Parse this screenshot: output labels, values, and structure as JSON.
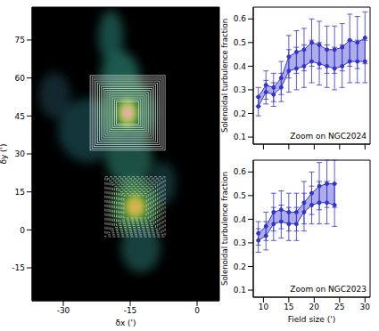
{
  "chart_data": [
    {
      "type": "image",
      "xlabel": "δx (')",
      "ylabel": "δy (')",
      "xlim": [
        -37,
        5
      ],
      "xticks": [
        -30,
        -15,
        0
      ],
      "ylim": [
        -28,
        88
      ],
      "yticks": [
        -15,
        0,
        15,
        30,
        45,
        60,
        75
      ]
    },
    {
      "type": "band",
      "ylabel": "Solenoidal turbulence fraction",
      "annotation": "Zoom on NGC2024",
      "x": [
        9,
        10.5,
        12,
        13.5,
        15,
        16.5,
        18,
        19.5,
        21,
        22.5,
        24,
        25.5,
        27,
        28.5,
        30
      ],
      "series": [
        {
          "color": "#3333cc",
          "marker": "circle",
          "values": [
            0.27,
            0.32,
            0.31,
            0.35,
            0.44,
            0.46,
            0.47,
            0.5,
            0.49,
            0.47,
            0.47,
            0.48,
            0.51,
            0.5,
            0.52
          ],
          "errors": [
            0.04,
            0.06,
            0.06,
            0.07,
            0.09,
            0.09,
            0.09,
            0.1,
            0.1,
            0.1,
            0.1,
            0.1,
            0.11,
            0.11,
            0.11
          ]
        },
        {
          "color": "#3333cc",
          "marker": "circle",
          "values": [
            0.23,
            0.29,
            0.28,
            0.31,
            0.38,
            0.39,
            0.4,
            0.42,
            0.41,
            0.4,
            0.39,
            0.4,
            0.42,
            0.42,
            0.42
          ],
          "errors": [
            0.04,
            0.05,
            0.05,
            0.06,
            0.09,
            0.09,
            0.09,
            0.09,
            0.09,
            0.09,
            0.09,
            0.09,
            0.09,
            0.09,
            0.09
          ]
        }
      ],
      "xlim": [
        8,
        31
      ],
      "xticks": [
        10,
        15,
        20,
        25,
        30
      ],
      "ylim": [
        0.07,
        0.65
      ],
      "yticks": [
        0.1,
        0.2,
        0.3,
        0.4,
        0.5,
        0.6
      ],
      "tick_labels": "y"
    },
    {
      "type": "band",
      "ylabel": "Solenoidal turbulence fraction",
      "xlabel": "Field size (')",
      "annotation": "Zoom on NGC2023",
      "x": [
        9,
        10.5,
        12,
        13.5,
        15,
        16.5,
        18,
        19.5,
        21,
        22.5,
        24
      ],
      "series": [
        {
          "color": "#3333cc",
          "marker": "circle",
          "values": [
            0.34,
            0.37,
            0.43,
            0.44,
            0.43,
            0.43,
            0.47,
            0.51,
            0.54,
            0.55,
            0.55
          ],
          "errors": [
            0.05,
            0.06,
            0.08,
            0.08,
            0.08,
            0.08,
            0.09,
            0.09,
            0.1,
            0.1,
            0.1
          ]
        },
        {
          "color": "#3333cc",
          "marker": "circle",
          "values": [
            0.31,
            0.33,
            0.38,
            0.39,
            0.38,
            0.38,
            0.43,
            0.46,
            0.47,
            0.47,
            0.46
          ],
          "errors": [
            0.05,
            0.06,
            0.07,
            0.07,
            0.07,
            0.07,
            0.08,
            0.08,
            0.09,
            0.09,
            0.09
          ]
        }
      ],
      "xlim": [
        8,
        31
      ],
      "xticks": [
        10,
        15,
        20,
        25,
        30
      ],
      "ylim": [
        0.07,
        0.65
      ],
      "yticks": [
        0.1,
        0.2,
        0.3,
        0.4,
        0.5,
        0.6
      ]
    }
  ]
}
